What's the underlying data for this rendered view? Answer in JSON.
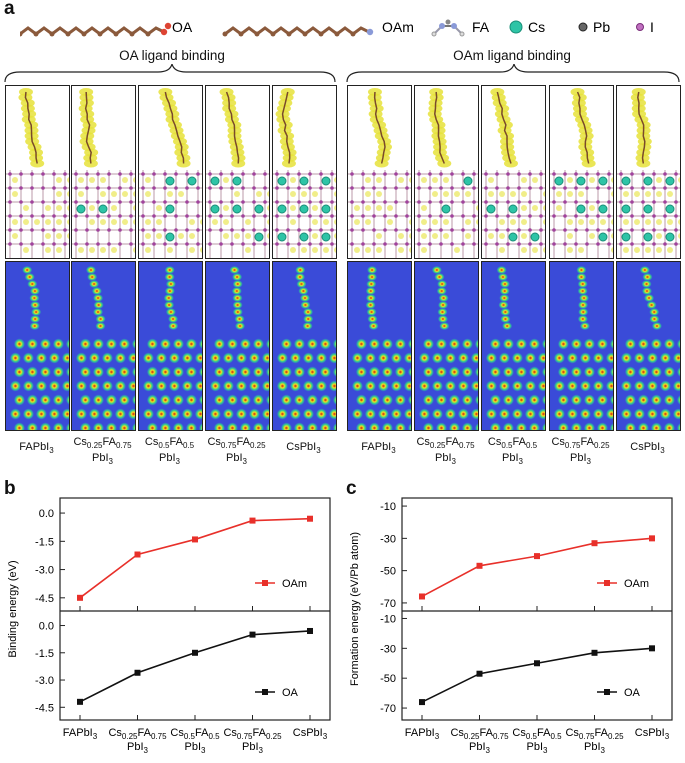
{
  "panel_a": {
    "letter": "a",
    "legend": [
      {
        "icon": "oa-chain-icon",
        "label": "OA"
      },
      {
        "icon": "oam-chain-icon",
        "label": "OAm"
      },
      {
        "icon": "fa-molecule-icon",
        "label": "FA"
      },
      {
        "icon": "cs-atom-icon",
        "label": "Cs"
      },
      {
        "icon": "pb-atom-icon",
        "label": "Pb"
      },
      {
        "icon": "i-atom-icon",
        "label": "I"
      }
    ],
    "groups": [
      {
        "title": "OA ligand binding"
      },
      {
        "title": "OAm ligand binding"
      }
    ],
    "compositions": [
      {
        "l1": "FAPbI",
        "sub1": "3",
        "l2": ""
      },
      {
        "l1": "Cs",
        "sub1": "0.25",
        "l1b": "FA",
        "sub1b": "0.75",
        "l2": "PbI",
        "sub2": "3"
      },
      {
        "l1": "Cs",
        "sub1": "0.5",
        "l1b": "FA",
        "sub1b": "0.5",
        "l2": "PbI",
        "sub2": "3"
      },
      {
        "l1": "Cs",
        "sub1": "0.75",
        "l1b": "FA",
        "sub1b": "0.25",
        "l2": "PbI",
        "sub2": "3"
      },
      {
        "l1": "CsPbI",
        "sub1": "3",
        "l2": ""
      }
    ],
    "colors": {
      "cs": "#2ec4a6",
      "pb": "#555555",
      "i": "#a0439c",
      "ligand": "#e6e23a",
      "chain": "#7a4a2a",
      "map_bg": "#3a4bd8"
    }
  },
  "chart_data": [
    {
      "panel": "b",
      "type": "line",
      "ylabel": "Binding energy (eV)",
      "categories": [
        "FAPbI3",
        "Cs0.25FA0.75PbI3",
        "Cs0.5FA0.5PbI3",
        "Cs0.75FA0.25PbI3",
        "CsPbI3"
      ],
      "series": [
        {
          "name": "OAm",
          "color": "#e8302a",
          "values": [
            -4.5,
            -2.2,
            -1.4,
            -0.4,
            -0.3
          ],
          "ylim": [
            -5.2,
            0.8
          ],
          "ticks": [
            "0.0",
            "-1.5",
            "-3.0",
            "-4.5"
          ],
          "tickvals": [
            0,
            -1.5,
            -3.0,
            -4.5
          ]
        },
        {
          "name": "OA",
          "color": "#111111",
          "values": [
            -4.2,
            -2.6,
            -1.5,
            -0.5,
            -0.3
          ],
          "ylim": [
            -5.2,
            0.8
          ],
          "ticks": [
            "0.0",
            "-1.5",
            "-3.0",
            "-4.5"
          ],
          "tickvals": [
            0,
            -1.5,
            -3.0,
            -4.5
          ]
        }
      ]
    },
    {
      "panel": "c",
      "type": "line",
      "ylabel": "Formation energy (eV/Pb atom)",
      "categories": [
        "FAPbI3",
        "Cs0.25FA0.75PbI3",
        "Cs0.5FA0.5PbI3",
        "Cs0.75FA0.25PbI3",
        "CsPbI3"
      ],
      "series": [
        {
          "name": "OAm",
          "color": "#e8302a",
          "values": [
            -66,
            -47,
            -41,
            -33,
            -30
          ],
          "ylim": [
            -75,
            -5
          ],
          "ticks": [
            "-10",
            "-30",
            "-50",
            "-70"
          ],
          "tickvals": [
            -10,
            -30,
            -50,
            -70
          ]
        },
        {
          "name": "OA",
          "color": "#111111",
          "values": [
            -66,
            -47,
            -40,
            -33,
            -30
          ],
          "ylim": [
            -78,
            -5
          ],
          "ticks": [
            "-10",
            "-30",
            "-50",
            "-70"
          ],
          "tickvals": [
            -10,
            -30,
            -50,
            -70
          ]
        }
      ]
    }
  ],
  "panel_b": {
    "letter": "b"
  },
  "panel_c": {
    "letter": "c"
  }
}
